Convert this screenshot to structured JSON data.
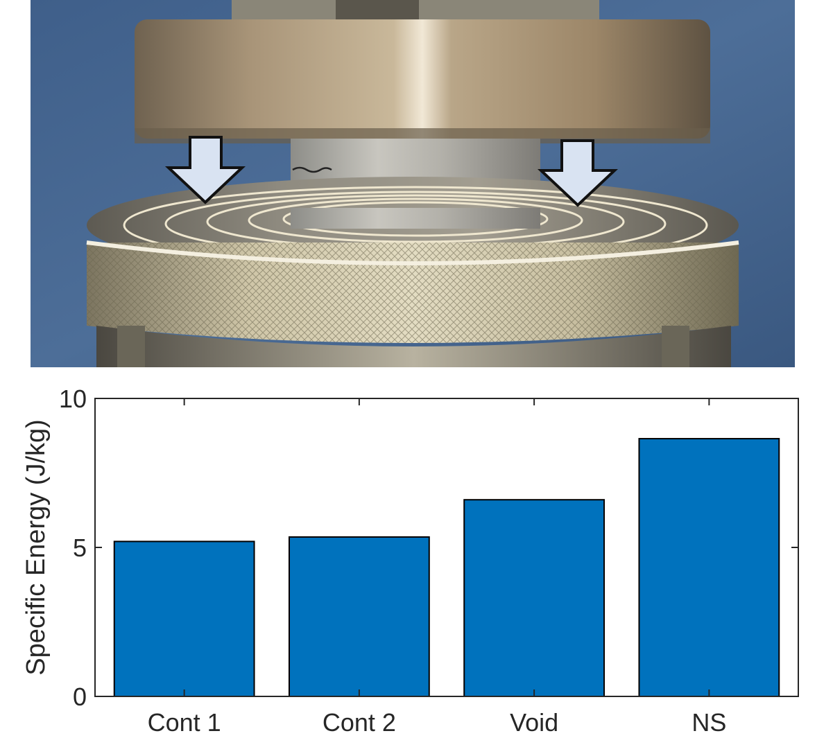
{
  "chart_data": {
    "type": "bar",
    "categories": [
      "Cont 1",
      "Cont 2",
      "Void",
      "NS"
    ],
    "values": [
      5.2,
      5.35,
      6.6,
      8.65
    ],
    "xlabel": "",
    "ylabel": "Specific Energy (J/kg)",
    "ylim": [
      0,
      10
    ],
    "yticks": [
      0,
      5,
      10
    ],
    "grid": false,
    "bar_color": "#0072BD"
  }
}
